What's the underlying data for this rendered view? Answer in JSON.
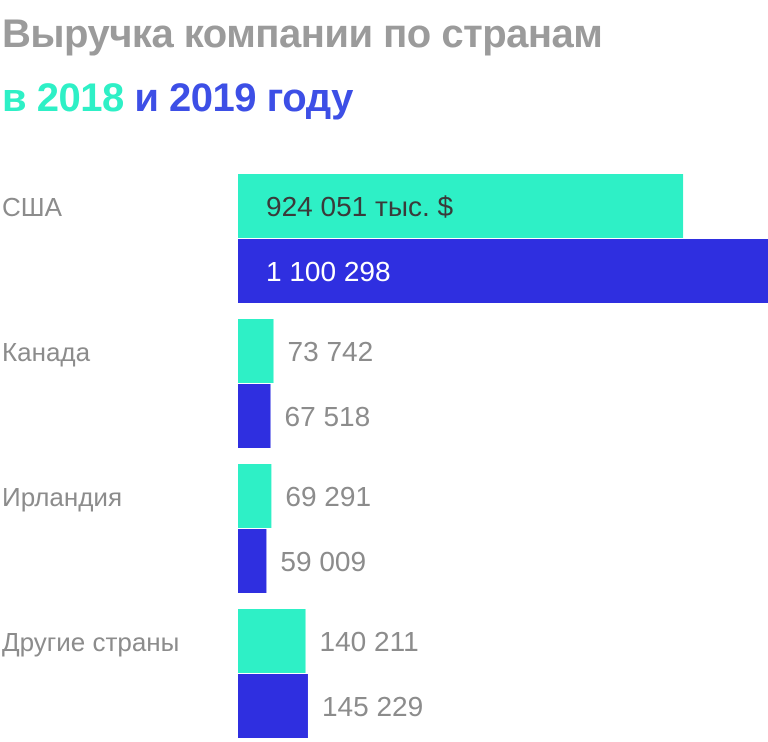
{
  "title": {
    "line1": "Выручка компании по странам",
    "line2_prefix": "в",
    "year1": "2018",
    "conj": "и",
    "year2": "2019",
    "suffix": "году"
  },
  "colors": {
    "title_gray": "#9b9b9b",
    "series_2018": "#2ef0c6",
    "series_2019": "#2f2fe0",
    "label_gray": "#8c8c8c",
    "inside_dark": "#3a3a3a",
    "inside_light": "#ffffff"
  },
  "chart_data": {
    "type": "bar",
    "orientation": "horizontal",
    "categories": [
      "США",
      "Канада",
      "Ирландия",
      "Другие страны"
    ],
    "series": [
      {
        "name": "2018",
        "values": [
          924051,
          73742,
          69291,
          140211
        ]
      },
      {
        "name": "2019",
        "values": [
          1100298,
          67518,
          59009,
          145229
        ]
      }
    ],
    "labels": [
      [
        "924 051 тыс. $",
        "73 742",
        "69 291",
        "140 211"
      ],
      [
        "1 100 298",
        "67 518",
        "59 009",
        "145 229"
      ]
    ],
    "xlim": [
      0,
      1100298
    ]
  }
}
